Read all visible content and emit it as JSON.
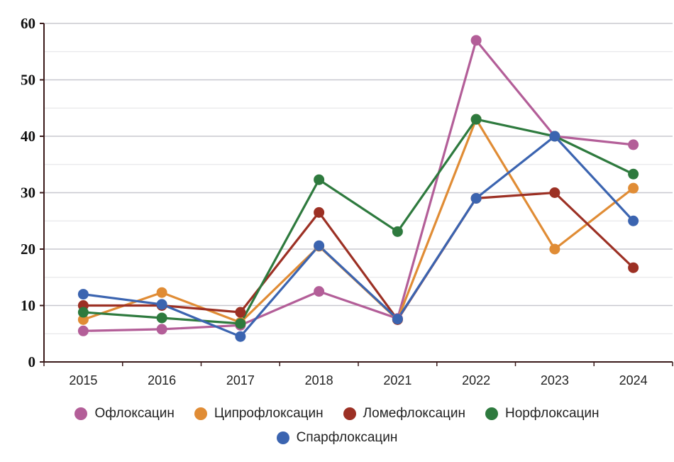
{
  "chart_data": {
    "type": "line",
    "categories": [
      "2015",
      "2016",
      "2017",
      "2018",
      "2021",
      "2022",
      "2023",
      "2024"
    ],
    "ylim": [
      0,
      60
    ],
    "yticks": [
      0,
      10,
      20,
      30,
      40,
      50,
      60
    ],
    "grid": true,
    "legend_position": "bottom",
    "series": [
      {
        "name": "Офлоксацин",
        "color": "#b35e98",
        "values": [
          5.5,
          5.8,
          6.5,
          12.5,
          7.7,
          57,
          40,
          38.5
        ]
      },
      {
        "name": "Ципрофлоксацин",
        "color": "#e08c35",
        "values": [
          7.5,
          12.3,
          7.0,
          20.5,
          7.5,
          43,
          20,
          30.8
        ]
      },
      {
        "name": "Ломефлоксацин",
        "color": "#9c3024",
        "values": [
          10,
          10,
          8.8,
          26.5,
          7.5,
          29,
          30,
          16.7
        ]
      },
      {
        "name": "Норфлоксацин",
        "color": "#2e7a3e",
        "values": [
          8.8,
          7.8,
          6.8,
          32.3,
          23.1,
          43,
          40,
          33.3
        ]
      },
      {
        "name": "Спарфлоксацин",
        "color": "#3b64b0",
        "values": [
          12,
          10.2,
          4.5,
          20.6,
          7.6,
          29,
          40,
          25
        ]
      }
    ]
  }
}
